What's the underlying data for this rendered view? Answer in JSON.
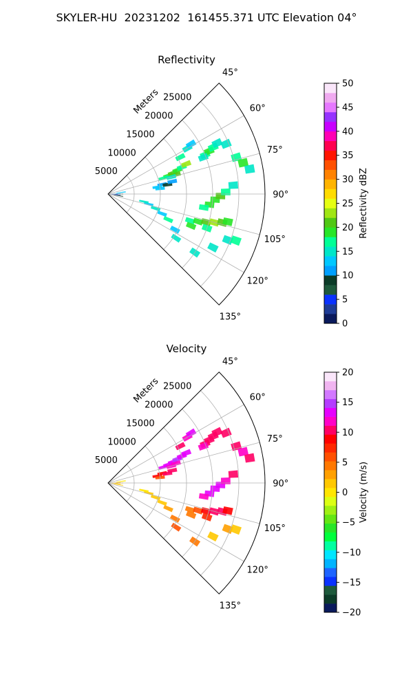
{
  "figure_title": "SKYLER-HU  20231202  161455.371 UTC Elevation 04°",
  "chart_data": [
    {
      "type": "heatmap",
      "projection": "polar-sector",
      "title": "Reflectivity",
      "radial_label": "Meters",
      "radial_ticks": [
        5000,
        10000,
        15000,
        20000,
        25000
      ],
      "radial_tick_labels": [
        "5000",
        "10000",
        "15000",
        "20000",
        "25000"
      ],
      "radial_max": 30000,
      "angle_range_deg": [
        45,
        135
      ],
      "angle_ticks_deg": [
        45,
        60,
        75,
        90,
        105,
        120,
        135
      ],
      "angle_tick_labels": [
        "45°",
        "60°",
        "75°",
        "90°",
        "105°",
        "120°",
        "135°"
      ],
      "grid": true,
      "colorbar": {
        "label": "Reflectivity dBZ",
        "range": [
          0,
          50
        ],
        "ticks": [
          0,
          5,
          10,
          15,
          20,
          25,
          30,
          35,
          40,
          45,
          50
        ],
        "tick_labels": [
          "0",
          "5",
          "10",
          "15",
          "20",
          "25",
          "30",
          "35",
          "40",
          "45",
          "50"
        ],
        "colormap": [
          "#0a1a5c",
          "#1e3c96",
          "#0a32ff",
          "#1e5a3c",
          "#0c3c28",
          "#00a0ff",
          "#00c8ff",
          "#00e6c8",
          "#00ff96",
          "#28e628",
          "#50c814",
          "#a0e614",
          "#e6ff14",
          "#ffdc00",
          "#ffb400",
          "#ff8200",
          "#ff5000",
          "#ff1400",
          "#ff0050",
          "#ff00b4",
          "#c800ff",
          "#9632ff",
          "#e678ff",
          "#f0aaf0",
          "#fae6fa"
        ]
      },
      "cells": [
        {
          "r": 1000,
          "a": 93,
          "v": 4
        },
        {
          "r": 1500,
          "a": 96,
          "v": 2
        },
        {
          "r": 2000,
          "a": 90,
          "v": 8
        },
        {
          "r": 1500,
          "a": 88,
          "v": 11
        },
        {
          "r": 2500,
          "a": 83,
          "v": 13
        },
        {
          "r": 2000,
          "a": 99,
          "v": 9
        },
        {
          "r": 12000,
          "a": 73,
          "v": 18
        },
        {
          "r": 13000,
          "a": 72,
          "v": 20
        },
        {
          "r": 14000,
          "a": 71,
          "v": 19
        },
        {
          "r": 11000,
          "a": 74,
          "v": 17
        },
        {
          "r": 15000,
          "a": 70,
          "v": 16
        },
        {
          "r": 16000,
          "a": 69,
          "v": 22
        },
        {
          "r": 13500,
          "a": 74,
          "v": 21
        },
        {
          "r": 12500,
          "a": 75,
          "v": 14
        },
        {
          "r": 10500,
          "a": 80,
          "v": 11
        },
        {
          "r": 11500,
          "a": 81,
          "v": 9
        },
        {
          "r": 9500,
          "a": 82,
          "v": 12
        },
        {
          "r": 12500,
          "a": 79,
          "v": 10
        },
        {
          "r": 10000,
          "a": 84,
          "v": 13
        },
        {
          "r": 20000,
          "a": 68,
          "v": 17
        },
        {
          "r": 21000,
          "a": 67,
          "v": 19
        },
        {
          "r": 22000,
          "a": 66,
          "v": 16
        },
        {
          "r": 19500,
          "a": 69,
          "v": 15
        },
        {
          "r": 23000,
          "a": 65,
          "v": 14
        },
        {
          "r": 17500,
          "a": 60,
          "v": 15
        },
        {
          "r": 18500,
          "a": 59,
          "v": 13
        },
        {
          "r": 15500,
          "a": 63,
          "v": 16
        },
        {
          "r": 25500,
          "a": 74,
          "v": 17
        },
        {
          "r": 26500,
          "a": 77,
          "v": 18
        },
        {
          "r": 27500,
          "a": 80,
          "v": 15
        },
        {
          "r": 24500,
          "a": 67,
          "v": 14
        },
        {
          "r": 20500,
          "a": 93,
          "v": 19
        },
        {
          "r": 21500,
          "a": 91,
          "v": 20
        },
        {
          "r": 19500,
          "a": 96,
          "v": 18
        },
        {
          "r": 18500,
          "a": 98,
          "v": 17
        },
        {
          "r": 22500,
          "a": 89,
          "v": 16
        },
        {
          "r": 24000,
          "a": 86,
          "v": 15
        },
        {
          "r": 8000,
          "a": 104,
          "v": 12
        },
        {
          "r": 9500,
          "a": 107,
          "v": 15
        },
        {
          "r": 11000,
          "a": 110,
          "v": 13
        },
        {
          "r": 7000,
          "a": 102,
          "v": 14
        },
        {
          "r": 12500,
          "a": 113,
          "v": 16
        },
        {
          "r": 16500,
          "a": 108,
          "v": 16
        },
        {
          "r": 18000,
          "a": 107,
          "v": 19
        },
        {
          "r": 19500,
          "a": 106,
          "v": 21
        },
        {
          "r": 21000,
          "a": 105,
          "v": 22
        },
        {
          "r": 22500,
          "a": 104,
          "v": 20
        },
        {
          "r": 17000,
          "a": 111,
          "v": 18
        },
        {
          "r": 20000,
          "a": 109,
          "v": 17
        },
        {
          "r": 23500,
          "a": 103,
          "v": 19
        },
        {
          "r": 24500,
          "a": 111,
          "v": 15
        },
        {
          "r": 26000,
          "a": 110,
          "v": 16
        },
        {
          "r": 22500,
          "a": 117,
          "v": 14
        },
        {
          "r": 14500,
          "a": 118,
          "v": 13
        },
        {
          "r": 15500,
          "a": 123,
          "v": 15
        },
        {
          "r": 20000,
          "a": 124,
          "v": 14
        }
      ]
    },
    {
      "type": "heatmap",
      "projection": "polar-sector",
      "title": "Velocity",
      "radial_label": "Meters",
      "radial_ticks": [
        5000,
        10000,
        15000,
        20000,
        25000
      ],
      "radial_tick_labels": [
        "5000",
        "10000",
        "15000",
        "20000",
        "25000"
      ],
      "radial_max": 30000,
      "angle_range_deg": [
        45,
        135
      ],
      "angle_ticks_deg": [
        45,
        60,
        75,
        90,
        105,
        120,
        135
      ],
      "angle_tick_labels": [
        "45°",
        "60°",
        "75°",
        "90°",
        "105°",
        "120°",
        "135°"
      ],
      "grid": true,
      "colorbar": {
        "label": "Velocity (m/s)",
        "range": [
          -20,
          20
        ],
        "ticks": [
          -20,
          -15,
          -10,
          -5,
          0,
          5,
          10,
          15,
          20
        ],
        "tick_labels": [
          "−20",
          "−15",
          "−10",
          "−5",
          "0",
          "5",
          "10",
          "15",
          "20"
        ],
        "colormap": [
          "#0a1a5c",
          "#0c3c28",
          "#1e5a3c",
          "#0a32ff",
          "#1e64ff",
          "#00b4ff",
          "#00e6ff",
          "#00ffa0",
          "#00ff3c",
          "#28e628",
          "#64e614",
          "#a0f014",
          "#dcff14",
          "#ffe600",
          "#ffc800",
          "#ffa000",
          "#ff7800",
          "#ff5000",
          "#ff2800",
          "#ff0000",
          "#ff0064",
          "#ff00c8",
          "#e600ff",
          "#b43cff",
          "#d278ff",
          "#f0b4f0",
          "#fae6fa"
        ]
      },
      "cells": [
        {
          "r": 1000,
          "a": 93,
          "v": 1
        },
        {
          "r": 1500,
          "a": 96,
          "v": 2
        },
        {
          "r": 2000,
          "a": 90,
          "v": 1
        },
        {
          "r": 1500,
          "a": 88,
          "v": 3
        },
        {
          "r": 2500,
          "a": 83,
          "v": 0
        },
        {
          "r": 2000,
          "a": 99,
          "v": 1
        },
        {
          "r": 12000,
          "a": 73,
          "v": 13
        },
        {
          "r": 13000,
          "a": 72,
          "v": 14
        },
        {
          "r": 14000,
          "a": 71,
          "v": 15
        },
        {
          "r": 11000,
          "a": 74,
          "v": 13
        },
        {
          "r": 15000,
          "a": 70,
          "v": 14
        },
        {
          "r": 16000,
          "a": 69,
          "v": 13
        },
        {
          "r": 13500,
          "a": 74,
          "v": 12
        },
        {
          "r": 12500,
          "a": 75,
          "v": 12
        },
        {
          "r": 10500,
          "a": 80,
          "v": 9
        },
        {
          "r": 11500,
          "a": 81,
          "v": 10
        },
        {
          "r": 9500,
          "a": 82,
          "v": 9
        },
        {
          "r": 12500,
          "a": 79,
          "v": 11
        },
        {
          "r": 10000,
          "a": 84,
          "v": 6
        },
        {
          "r": 20000,
          "a": 68,
          "v": 11
        },
        {
          "r": 21000,
          "a": 67,
          "v": 11
        },
        {
          "r": 22000,
          "a": 66,
          "v": 10
        },
        {
          "r": 19500,
          "a": 69,
          "v": 12
        },
        {
          "r": 23000,
          "a": 65,
          "v": 11
        },
        {
          "r": 17500,
          "a": 60,
          "v": 12
        },
        {
          "r": 18500,
          "a": 59,
          "v": 13
        },
        {
          "r": 15500,
          "a": 63,
          "v": 11
        },
        {
          "r": 25500,
          "a": 74,
          "v": 11
        },
        {
          "r": 26500,
          "a": 77,
          "v": 12
        },
        {
          "r": 27500,
          "a": 80,
          "v": 11
        },
        {
          "r": 24500,
          "a": 67,
          "v": 10
        },
        {
          "r": 20500,
          "a": 93,
          "v": 13
        },
        {
          "r": 21500,
          "a": 91,
          "v": 14
        },
        {
          "r": 19500,
          "a": 96,
          "v": 13
        },
        {
          "r": 18500,
          "a": 98,
          "v": 12
        },
        {
          "r": 22500,
          "a": 89,
          "v": 12
        },
        {
          "r": 24000,
          "a": 86,
          "v": 11
        },
        {
          "r": 8000,
          "a": 104,
          "v": 1
        },
        {
          "r": 9500,
          "a": 107,
          "v": 2
        },
        {
          "r": 11000,
          "a": 110,
          "v": 1
        },
        {
          "r": 7000,
          "a": 102,
          "v": 0
        },
        {
          "r": 12500,
          "a": 113,
          "v": 3
        },
        {
          "r": 16500,
          "a": 108,
          "v": 4
        },
        {
          "r": 18000,
          "a": 107,
          "v": 6
        },
        {
          "r": 19500,
          "a": 106,
          "v": 9
        },
        {
          "r": 21000,
          "a": 105,
          "v": 10
        },
        {
          "r": 22500,
          "a": 104,
          "v": 10
        },
        {
          "r": 17000,
          "a": 111,
          "v": 5
        },
        {
          "r": 20000,
          "a": 109,
          "v": 8
        },
        {
          "r": 23500,
          "a": 103,
          "v": 9
        },
        {
          "r": 24500,
          "a": 111,
          "v": 3
        },
        {
          "r": 26000,
          "a": 110,
          "v": 2
        },
        {
          "r": 22500,
          "a": 117,
          "v": 1
        },
        {
          "r": 14500,
          "a": 118,
          "v": 5
        },
        {
          "r": 15500,
          "a": 123,
          "v": 6
        },
        {
          "r": 20000,
          "a": 124,
          "v": 4
        }
      ]
    }
  ]
}
